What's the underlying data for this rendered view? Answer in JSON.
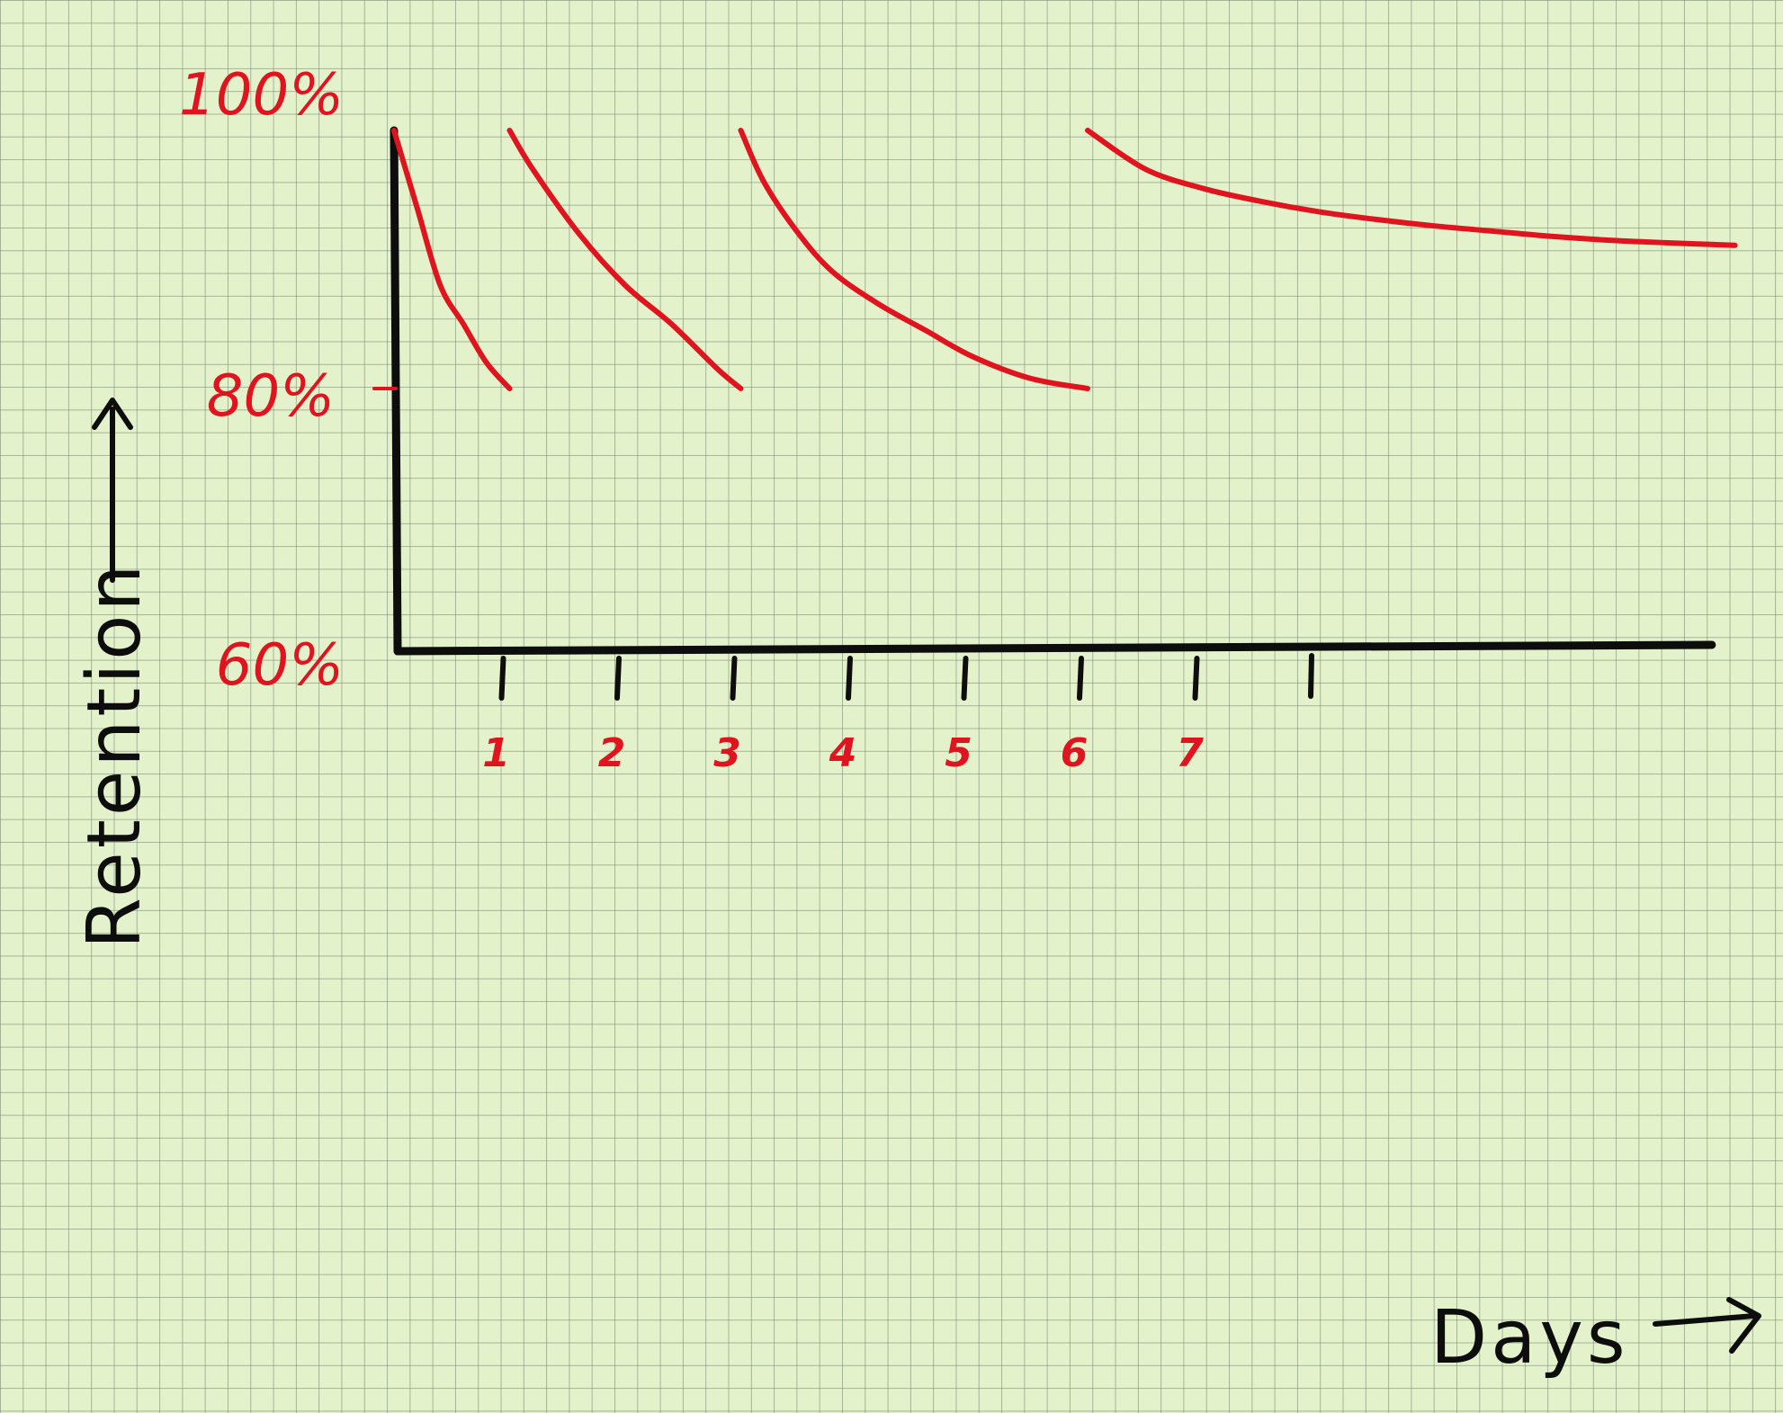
{
  "chart_data": {
    "type": "line",
    "xlabel": "Days",
    "ylabel": "Retention",
    "x_ticks": [
      "1",
      "2",
      "3",
      "4",
      "5",
      "6",
      "7"
    ],
    "y_ticks": [
      "100%",
      "80%",
      "60%"
    ],
    "ylim": [
      60,
      100
    ],
    "xlim": [
      0,
      11.6
    ],
    "grid": true,
    "series": [
      {
        "x": [
          0,
          0.2,
          0.4,
          0.6,
          0.8,
          1.0
        ],
        "y": [
          100,
          94,
          88,
          85,
          82,
          80
        ]
      },
      {
        "x": [
          1.0,
          1.2,
          1.6,
          2.0,
          2.4,
          2.8,
          3.0
        ],
        "y": [
          100,
          97,
          92,
          88,
          85,
          81.5,
          80
        ]
      },
      {
        "x": [
          3.0,
          3.2,
          3.5,
          3.8,
          4.2,
          4.6,
          5.0,
          5.5,
          6.0
        ],
        "y": [
          100,
          96,
          92,
          89,
          86.5,
          84.5,
          82.5,
          80.8,
          80
        ]
      },
      {
        "x": [
          6.0,
          6.5,
          7.0,
          7.5,
          8.0,
          8.5,
          9.0,
          9.5,
          10.0,
          10.5,
          11.0,
          11.6
        ],
        "y": [
          100,
          97,
          95.5,
          94.5,
          93.7,
          93.1,
          92.6,
          92.2,
          91.8,
          91.5,
          91.3,
          91.1
        ]
      }
    ]
  },
  "style": {
    "axis_color": "#0d0d0d",
    "data_color": "#e0141f",
    "paper_color": "#e4f2cb"
  }
}
